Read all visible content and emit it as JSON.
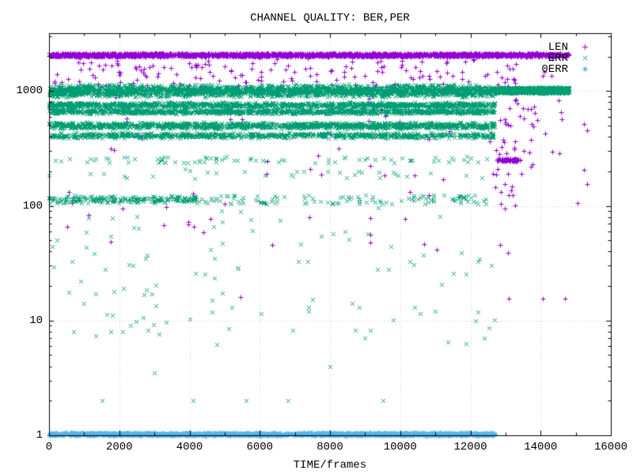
{
  "window": {
    "background": "#ffffff"
  },
  "chart_data": {
    "type": "scatter",
    "title": "CHANNEL QUALITY: BER,PER",
    "xlabel": "TIME/frames",
    "ylabel": "",
    "x_axis": {
      "min": 0,
      "max": 16000,
      "ticks": [
        0,
        2000,
        4000,
        6000,
        8000,
        10000,
        12000,
        14000,
        16000
      ],
      "tick_labels": [
        "0",
        "2000",
        "4000",
        "6000",
        "8000",
        "10000",
        "12000",
        "14000",
        "16000"
      ],
      "minor_step": 1000
    },
    "y_axis": {
      "scale": "log",
      "min": 1,
      "max": 3200,
      "ticks": [
        1,
        10,
        100,
        1000
      ],
      "tick_labels": [
        "1",
        "10",
        "100",
        "1000"
      ]
    },
    "grid": {
      "show": true,
      "style": "dotted",
      "color": "#c9c9c9"
    },
    "border_color": "#000000",
    "text_color": "#000000",
    "marker_px": 3,
    "seed": 1337,
    "legend": {
      "position": "top-right-inside",
      "entries": [
        {
          "label": "LEN",
          "marker": "plus",
          "color": "#9400d3"
        },
        {
          "label": "ERR",
          "marker": "cross",
          "color": "#009e73"
        },
        {
          "label": "0ERR",
          "marker": "asterisk",
          "color": "#56b4e9"
        }
      ]
    },
    "series": [
      {
        "name": "LEN",
        "marker": "plus",
        "color": "#9400d3",
        "clusters": [
          {
            "kind": "band",
            "x0": 0,
            "x1": 14800,
            "v0": 1990,
            "v1": 2150,
            "n": 2800
          },
          {
            "kind": "scatter",
            "x0": 0,
            "x1": 12700,
            "v0": 1060,
            "v1": 1950,
            "n": 160
          },
          {
            "kind": "scatter",
            "x0": 0,
            "x1": 12700,
            "v0": 40,
            "v1": 1040,
            "n": 55
          },
          {
            "kind": "band",
            "x0": 12750,
            "x1": 13420,
            "v0": 243,
            "v1": 260,
            "n": 70
          },
          {
            "kind": "scatter",
            "x0": 12700,
            "x1": 13350,
            "v0": 95,
            "v1": 2000,
            "n": 50
          },
          {
            "kind": "scatter",
            "x0": 13350,
            "x1": 14800,
            "v0": 180,
            "v1": 1950,
            "n": 26
          },
          {
            "kind": "points",
            "points": [
              [
                13100,
                15.5
              ],
              [
                14060,
                15.5
              ],
              [
                14700,
                15.5
              ],
              [
                15230,
                517
              ],
              [
                15320,
                458
              ],
              [
                15230,
                207
              ],
              [
                15320,
                155
              ],
              [
                15050,
                106
              ],
              [
                12850,
                46
              ],
              [
                13060,
                39
              ],
              [
                1750,
                49
              ],
              [
                6350,
                46
              ],
              [
                5450,
                16
              ]
            ]
          }
        ]
      },
      {
        "name": "ERR",
        "marker": "cross",
        "color": "#009e73",
        "clusters": [
          {
            "kind": "band",
            "x0": 0,
            "x1": 12700,
            "v0": 880,
            "v1": 1160,
            "n": 2600
          },
          {
            "kind": "band",
            "x0": 12700,
            "x1": 14800,
            "v0": 950,
            "v1": 1090,
            "n": 1600
          },
          {
            "kind": "band",
            "x0": 0,
            "x1": 12700,
            "v0": 715,
            "v1": 805,
            "n": 1300
          },
          {
            "kind": "band",
            "x0": 0,
            "x1": 12700,
            "v0": 630,
            "v1": 700,
            "n": 1300
          },
          {
            "kind": "band",
            "x0": 0,
            "x1": 12700,
            "v0": 465,
            "v1": 540,
            "n": 1500
          },
          {
            "kind": "band",
            "x0": 0,
            "x1": 12700,
            "v0": 385,
            "v1": 438,
            "n": 900
          },
          {
            "kind": "scatter",
            "x0": 0,
            "x1": 12700,
            "v0": 238,
            "v1": 268,
            "n": 80
          },
          {
            "kind": "scatter",
            "x0": 0,
            "x1": 12700,
            "v0": 172,
            "v1": 210,
            "n": 32
          },
          {
            "kind": "band",
            "x0": 0,
            "x1": 4200,
            "v0": 104,
            "v1": 124,
            "n": 240
          },
          {
            "kind": "scatter",
            "x0": 4200,
            "x1": 12700,
            "v0": 104,
            "v1": 124,
            "n": 120
          },
          {
            "kind": "scatter",
            "x0": 0,
            "x1": 12700,
            "v0": 6,
            "v1": 100,
            "n": 95
          },
          {
            "kind": "points",
            "points": [
              [
                100,
                44
              ],
              [
                700,
                8
              ],
              [
                1500,
                2
              ],
              [
                1750,
                8
              ],
              [
                2100,
                8
              ],
              [
                4100,
                2
              ],
              [
                5600,
                2
              ],
              [
                3000,
                3.5
              ],
              [
                5200,
                13
              ],
              [
                7400,
                13
              ],
              [
                9000,
                7
              ],
              [
                10400,
                13
              ],
              [
                12150,
                10
              ],
              [
                12400,
                7
              ],
              [
                12600,
                30
              ],
              [
                6800,
                2
              ],
              [
                9500,
                2
              ],
              [
                11000,
                12
              ],
              [
                8000,
                4
              ],
              [
                4700,
                35
              ]
            ]
          }
        ]
      },
      {
        "name": "0ERR",
        "marker": "asterisk",
        "color": "#56b4e9",
        "clusters": [
          {
            "kind": "band",
            "x0": 0,
            "x1": 12700,
            "v0": 0.99,
            "v1": 1.06,
            "n": 1700
          }
        ]
      }
    ]
  }
}
